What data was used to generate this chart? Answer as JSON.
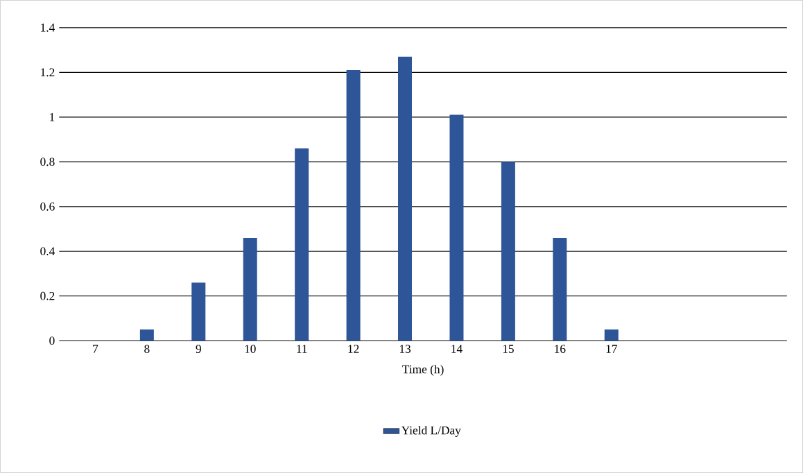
{
  "chart_data": {
    "type": "bar",
    "xlabel": "Time (h)",
    "categories": [
      "7",
      "8",
      "9",
      "10",
      "11",
      "12",
      "13",
      "14",
      "15",
      "16",
      "17"
    ],
    "series": [
      {
        "name": "Yield L/Day",
        "color": "#2e5597",
        "values": [
          null,
          0.05,
          0.26,
          0.46,
          0.86,
          1.21,
          1.27,
          1.01,
          0.8,
          0.46,
          0.05
        ]
      }
    ],
    "ylim": [
      0,
      1.4
    ],
    "yticks": [
      0,
      0.2,
      0.4,
      0.6,
      0.8,
      1,
      1.2,
      1.4
    ],
    "grid": "y",
    "legend": "bottom"
  }
}
